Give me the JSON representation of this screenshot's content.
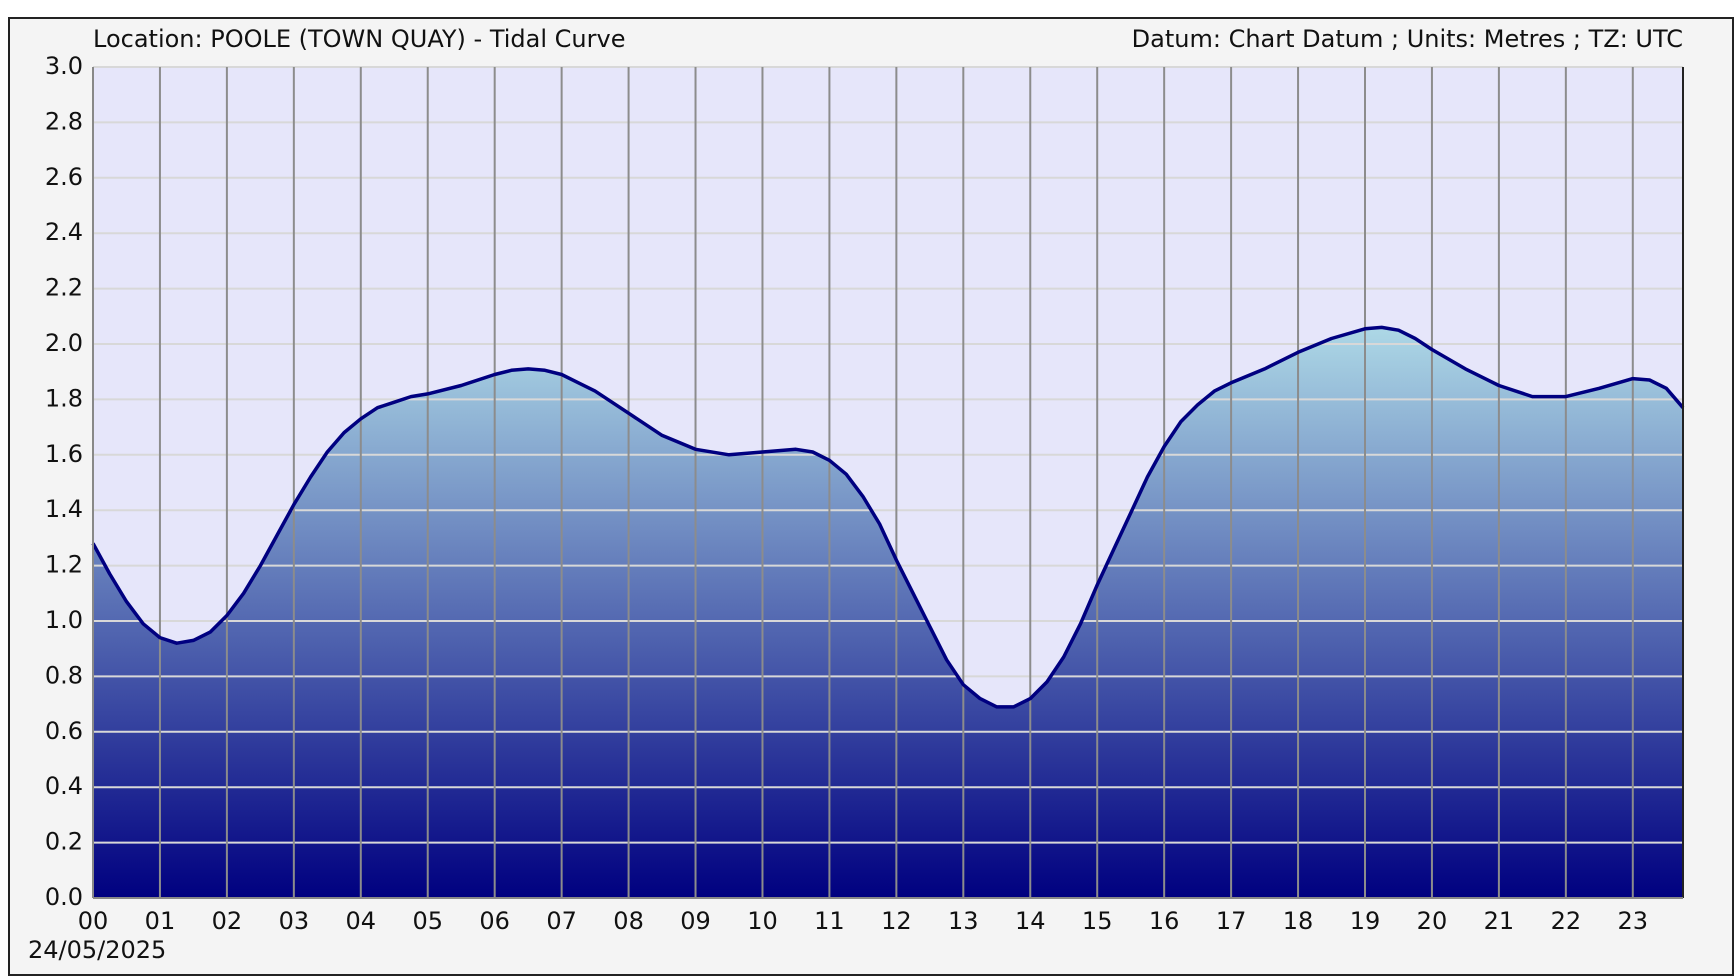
{
  "chart_data": {
    "type": "area",
    "title": "Location: POOLE (TOWN QUAY) - Tidal Curve",
    "subtitle": "Datum: Chart Datum ; Units: Metres ; TZ: UTC",
    "date_label": "24/05/2025",
    "x": [
      0,
      0.25,
      0.5,
      0.75,
      1,
      1.25,
      1.5,
      1.75,
      2,
      2.25,
      2.5,
      2.75,
      3,
      3.25,
      3.5,
      3.75,
      4,
      4.25,
      4.5,
      4.75,
      5,
      5.5,
      6,
      6.25,
      6.5,
      6.75,
      7,
      7.5,
      8,
      8.5,
      9,
      9.5,
      10,
      10.5,
      10.75,
      11,
      11.25,
      11.5,
      11.75,
      12,
      12.25,
      12.5,
      12.75,
      13,
      13.25,
      13.5,
      13.75,
      14,
      14.25,
      14.5,
      14.75,
      15,
      15.25,
      15.5,
      15.75,
      16,
      16.25,
      16.5,
      16.75,
      17,
      17.5,
      18,
      18.5,
      19,
      19.25,
      19.5,
      19.75,
      20,
      20.5,
      21,
      21.5,
      22,
      22.5,
      23,
      23.25,
      23.5,
      23.75
    ],
    "series": [
      {
        "color": "#000080",
        "values": [
          1.28,
          1.17,
          1.07,
          0.99,
          0.94,
          0.92,
          0.93,
          0.96,
          1.02,
          1.1,
          1.2,
          1.31,
          1.42,
          1.52,
          1.61,
          1.68,
          1.73,
          1.77,
          1.79,
          1.81,
          1.82,
          1.85,
          1.89,
          1.905,
          1.91,
          1.905,
          1.89,
          1.83,
          1.75,
          1.67,
          1.62,
          1.6,
          1.61,
          1.62,
          1.61,
          1.58,
          1.53,
          1.45,
          1.35,
          1.22,
          1.1,
          0.98,
          0.86,
          0.77,
          0.72,
          0.69,
          0.69,
          0.72,
          0.78,
          0.87,
          0.99,
          1.13,
          1.26,
          1.39,
          1.52,
          1.63,
          1.72,
          1.78,
          1.83,
          1.86,
          1.91,
          1.97,
          2.02,
          2.055,
          2.06,
          2.05,
          2.02,
          1.98,
          1.91,
          1.85,
          1.81,
          1.81,
          1.84,
          1.875,
          1.87,
          1.84,
          1.77
        ]
      }
    ],
    "fill_top_color": "#add8e6",
    "plot_background": "#e6e6fa",
    "xlim": [
      0,
      23.75
    ],
    "xticks": [
      {
        "value": 0,
        "label": "00"
      },
      {
        "value": 1,
        "label": "01"
      },
      {
        "value": 2,
        "label": "02"
      },
      {
        "value": 3,
        "label": "03"
      },
      {
        "value": 4,
        "label": "04"
      },
      {
        "value": 5,
        "label": "05"
      },
      {
        "value": 6,
        "label": "06"
      },
      {
        "value": 7,
        "label": "07"
      },
      {
        "value": 8,
        "label": "08"
      },
      {
        "value": 9,
        "label": "09"
      },
      {
        "value": 10,
        "label": "10"
      },
      {
        "value": 11,
        "label": "11"
      },
      {
        "value": 12,
        "label": "12"
      },
      {
        "value": 13,
        "label": "13"
      },
      {
        "value": 14,
        "label": "14"
      },
      {
        "value": 15,
        "label": "15"
      },
      {
        "value": 16,
        "label": "16"
      },
      {
        "value": 17,
        "label": "17"
      },
      {
        "value": 18,
        "label": "18"
      },
      {
        "value": 19,
        "label": "19"
      },
      {
        "value": 20,
        "label": "20"
      },
      {
        "value": 21,
        "label": "21"
      },
      {
        "value": 22,
        "label": "22"
      },
      {
        "value": 23,
        "label": "23"
      }
    ],
    "ylim": [
      0,
      3
    ],
    "yticks": [
      {
        "value": 0,
        "label": "0.0"
      },
      0.2,
      0.4,
      0.6,
      0.8,
      {
        "value": 1,
        "label": "1.0"
      },
      1.2,
      1.4,
      1.6,
      1.8,
      {
        "value": 2,
        "label": "2.0"
      },
      2.2,
      2.4,
      2.6,
      2.8,
      {
        "value": 3,
        "label": "3.0"
      }
    ],
    "grid": true
  }
}
